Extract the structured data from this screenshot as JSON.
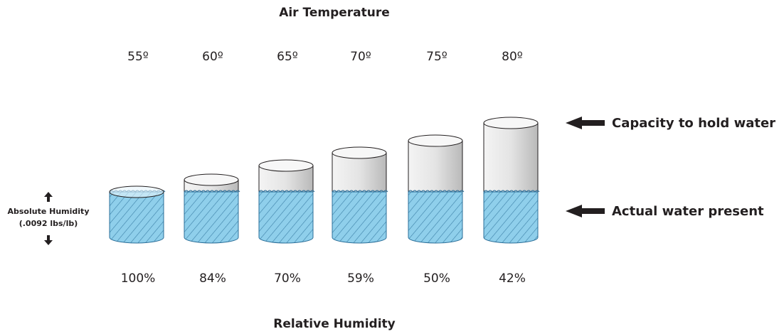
{
  "title": "Air Temperature",
  "temperatures": [
    "55º",
    "60º",
    "65º",
    "70º",
    "75º",
    "80º"
  ],
  "relative_humidity": [
    "100%",
    "84%",
    "70%",
    "59%",
    "50%",
    "42%"
  ],
  "footer": "Relative Humidity",
  "labels": {
    "capacity": "Capacity to hold water",
    "actual": "Actual water present"
  },
  "absolute_humidity": {
    "label": "Absolute Humidity",
    "value": "(.0092 lbs/lb)"
  }
}
